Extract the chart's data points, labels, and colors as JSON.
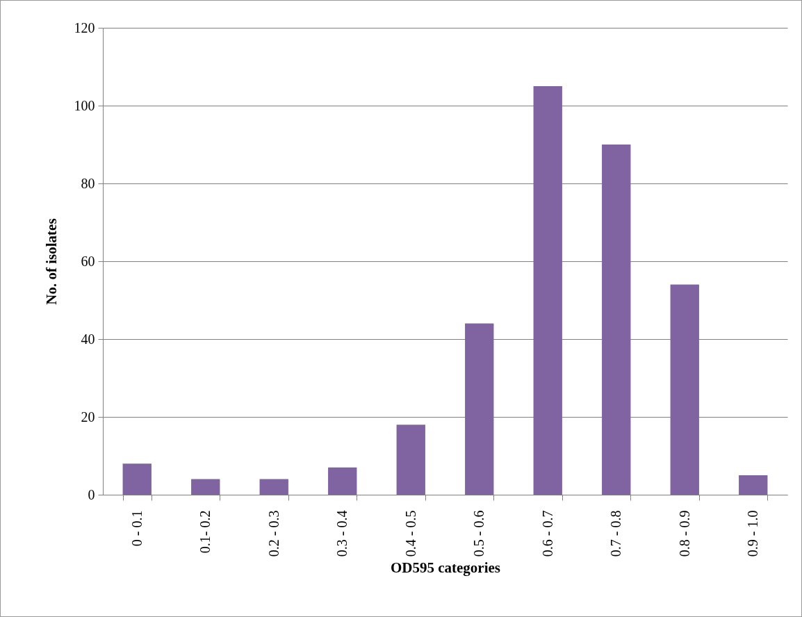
{
  "chart_data": {
    "type": "bar",
    "xlabel": "OD595 categories",
    "ylabel": "No. of isolates",
    "categories": [
      "0 - 0.1",
      "0.1- 0.2",
      "0.2 - 0.3",
      "0.3 - 0.4",
      "0.4 - 0.5",
      "0.5 - 0.6",
      "0.6 - 0.7",
      "0.7 - 0.8",
      "0.8 - 0.9",
      "0.9 - 1.0"
    ],
    "values": [
      8,
      4,
      4,
      7,
      18,
      44,
      105,
      90,
      54,
      5
    ],
    "color": "#8064a2",
    "ylim": [
      0,
      120
    ],
    "yticks": [
      0,
      20,
      40,
      60,
      80,
      100,
      120
    ],
    "grid": "y"
  }
}
